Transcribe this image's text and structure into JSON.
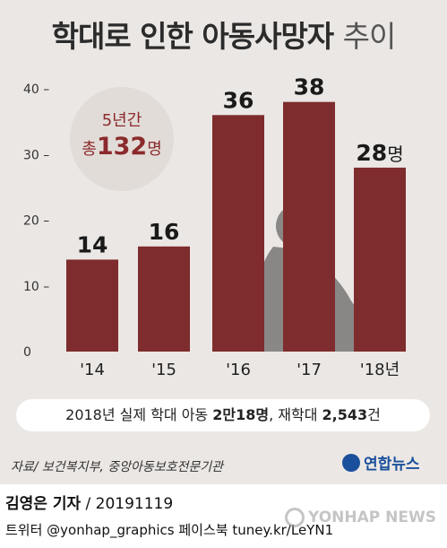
{
  "title_bold": "학대로 인한 아동사망자",
  "title_light": "추이",
  "summary": {
    "line1": "5년간",
    "prefix": "총",
    "value": "132",
    "unit": "명"
  },
  "stat": {
    "part1": "2018년 실제 학대 아동 ",
    "bold1": "2만18명",
    "part2": ", 재학대 ",
    "bold2": "2,543",
    "part3": "건"
  },
  "source": "자료/ 보건복지부, 중앙아동보호전문기관",
  "logo_text": "연합뉴스",
  "footer": {
    "reporter": "김영은 기자",
    "date": " / 20191119",
    "social": "트위터 @yonhap_graphics  페이스북 tuney.kr/LeYN1"
  },
  "watermark": "YONHAP NEWS",
  "chart_data": {
    "type": "bar",
    "categories": [
      "'14",
      "'15",
      "'16",
      "'17",
      "'18년"
    ],
    "values": [
      14,
      16,
      36,
      38,
      28
    ],
    "value_labels": [
      "14",
      "16",
      "36",
      "38",
      "28"
    ],
    "last_value_unit": "명",
    "ylim": [
      0,
      40
    ],
    "yticks": [
      0,
      10,
      20,
      30,
      40
    ],
    "ytick_labels": [
      "0",
      "10 –",
      "20 –",
      "30 –",
      "40 –"
    ],
    "bar_color": "#7e2c2d",
    "grid": false
  }
}
